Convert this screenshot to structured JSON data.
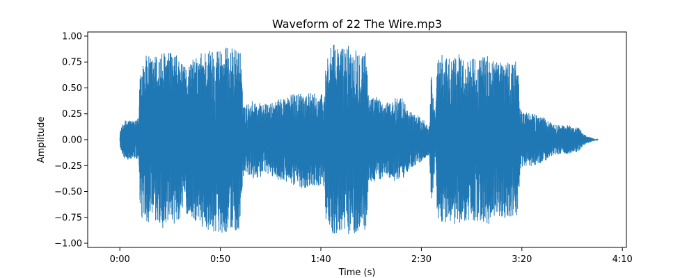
{
  "chart_data": {
    "type": "line",
    "title": "Waveform of 22 The Wire.mp3",
    "xlabel": "Time (s)",
    "ylabel": "Amplitude",
    "xlim": [
      -16,
      252
    ],
    "ylim": [
      -1.04,
      1.04
    ],
    "grid": false,
    "line_color": "#1f77b4",
    "x_ticks": [
      {
        "value": 0,
        "label": "0:00"
      },
      {
        "value": 50,
        "label": "0:50"
      },
      {
        "value": 100,
        "label": "1:40"
      },
      {
        "value": 150,
        "label": "2:30"
      },
      {
        "value": 200,
        "label": "3:20"
      },
      {
        "value": 250,
        "label": "4:10"
      }
    ],
    "y_ticks": [
      {
        "value": 1.0,
        "label": "1.00"
      },
      {
        "value": 0.75,
        "label": "0.75"
      },
      {
        "value": 0.5,
        "label": "0.50"
      },
      {
        "value": 0.25,
        "label": "0.25"
      },
      {
        "value": 0.0,
        "label": "0.00"
      },
      {
        "value": -0.25,
        "label": "−0.25"
      },
      {
        "value": -0.5,
        "label": "−0.50"
      },
      {
        "value": -0.75,
        "label": "−0.75"
      },
      {
        "value": -1.0,
        "label": "−1.00"
      }
    ],
    "series": [
      {
        "x": [
          0,
          2,
          4,
          6,
          8,
          9.5,
          10,
          12,
          16,
          20,
          24,
          28,
          32,
          36,
          40,
          40.5,
          45,
          50,
          55,
          60,
          61,
          62,
          66,
          70,
          74,
          78,
          82,
          86,
          90,
          94,
          98,
          102,
          102.5,
          106,
          110,
          114,
          118,
          122,
          123,
          124,
          128,
          132,
          136,
          140,
          144,
          148,
          152,
          154,
          155,
          157,
          158,
          160,
          164,
          168,
          172,
          176,
          180,
          184,
          188,
          192,
          196,
          198,
          199,
          200,
          204,
          208,
          212,
          216,
          220,
          224,
          228,
          230,
          232,
          236,
          238
        ],
        "amplitude_envelope": [
          0.08,
          0.18,
          0.2,
          0.19,
          0.18,
          0.22,
          0.75,
          0.82,
          0.8,
          0.85,
          0.86,
          0.82,
          0.7,
          0.78,
          0.8,
          0.86,
          0.88,
          0.9,
          0.89,
          0.88,
          0.45,
          0.33,
          0.38,
          0.36,
          0.34,
          0.38,
          0.42,
          0.44,
          0.47,
          0.46,
          0.44,
          0.45,
          0.82,
          0.92,
          0.9,
          0.92,
          0.9,
          0.88,
          0.78,
          0.4,
          0.42,
          0.34,
          0.4,
          0.42,
          0.28,
          0.24,
          0.18,
          0.15,
          0.68,
          0.2,
          0.78,
          0.82,
          0.8,
          0.84,
          0.78,
          0.8,
          0.8,
          0.82,
          0.76,
          0.78,
          0.76,
          0.75,
          0.32,
          0.28,
          0.26,
          0.24,
          0.2,
          0.15,
          0.14,
          0.14,
          0.12,
          0.07,
          0.04,
          0.01,
          0.0
        ]
      }
    ]
  }
}
